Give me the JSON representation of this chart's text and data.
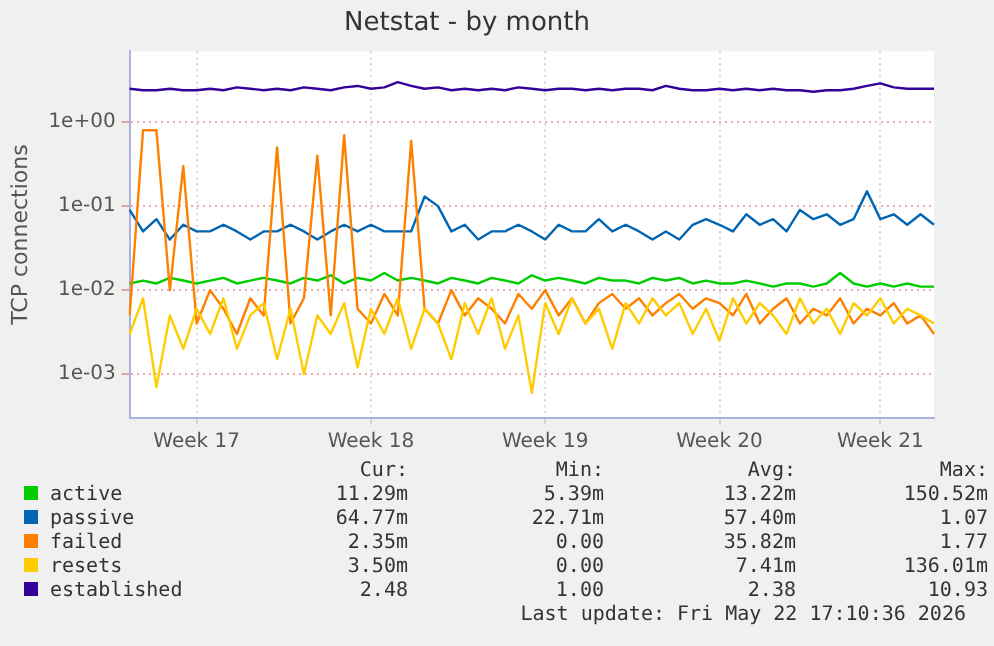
{
  "chart_data": {
    "type": "line",
    "title": "Netstat - by month",
    "ylabel": "TCP connections",
    "log": true,
    "grid": true,
    "legend": "bottom",
    "marker": "none",
    "line_style": "solid",
    "categories": [
      null,
      null,
      null,
      null,
      null,
      "Week 17",
      null,
      null,
      null,
      null,
      null,
      null,
      null,
      null,
      null,
      null,
      null,
      null,
      "Week 18",
      null,
      null,
      null,
      null,
      null,
      null,
      null,
      null,
      null,
      null,
      null,
      null,
      "Week 19",
      null,
      null,
      null,
      null,
      null,
      null,
      null,
      null,
      null,
      null,
      null,
      null,
      "Week 20",
      null,
      null,
      null,
      null,
      null,
      null,
      null,
      null,
      null,
      null,
      null,
      "Week 21",
      null,
      null,
      null,
      null
    ],
    "ylim": [
      0.0003,
      7
    ],
    "yticks": [
      {
        "value": 0.001,
        "label": "1e-03"
      },
      {
        "value": 0.01,
        "label": "1e-02"
      },
      {
        "value": 0.1,
        "label": "1e-01"
      },
      {
        "value": 1,
        "label": "1e+00"
      }
    ],
    "series": [
      {
        "name": "active",
        "color": "#00cc00",
        "values": [
          0.012,
          0.013,
          0.012,
          0.014,
          0.013,
          0.012,
          0.013,
          0.014,
          0.012,
          0.013,
          0.014,
          0.013,
          0.012,
          0.014,
          0.013,
          0.015,
          0.012,
          0.014,
          0.013,
          0.016,
          0.013,
          0.014,
          0.013,
          0.012,
          0.014,
          0.013,
          0.012,
          0.014,
          0.013,
          0.012,
          0.015,
          0.013,
          0.014,
          0.013,
          0.012,
          0.014,
          0.013,
          0.013,
          0.012,
          0.014,
          0.013,
          0.014,
          0.012,
          0.013,
          0.012,
          0.012,
          0.013,
          0.012,
          0.011,
          0.012,
          0.012,
          0.011,
          0.012,
          0.016,
          0.012,
          0.011,
          0.012,
          0.011,
          0.012,
          0.011,
          0.011
        ]
      },
      {
        "name": "passive",
        "color": "#0066b3",
        "values": [
          0.09,
          0.05,
          0.07,
          0.04,
          0.06,
          0.05,
          0.05,
          0.06,
          0.05,
          0.04,
          0.05,
          0.05,
          0.06,
          0.05,
          0.04,
          0.05,
          0.06,
          0.05,
          0.06,
          0.05,
          0.05,
          0.05,
          0.13,
          0.1,
          0.05,
          0.06,
          0.04,
          0.05,
          0.05,
          0.06,
          0.05,
          0.04,
          0.06,
          0.05,
          0.05,
          0.07,
          0.05,
          0.06,
          0.05,
          0.04,
          0.05,
          0.04,
          0.06,
          0.07,
          0.06,
          0.05,
          0.08,
          0.06,
          0.07,
          0.05,
          0.09,
          0.07,
          0.08,
          0.06,
          0.07,
          0.15,
          0.07,
          0.08,
          0.06,
          0.08,
          0.06
        ]
      },
      {
        "name": "failed",
        "color": "#ff8000",
        "values": [
          0.005,
          0.8,
          0.8,
          0.01,
          0.3,
          0.004,
          0.01,
          0.006,
          0.003,
          0.008,
          0.005,
          0.5,
          0.004,
          0.008,
          0.4,
          0.005,
          0.7,
          0.006,
          0.004,
          0.009,
          0.005,
          0.6,
          0.006,
          0.004,
          0.01,
          0.005,
          0.008,
          0.006,
          0.004,
          0.009,
          0.006,
          0.01,
          0.005,
          0.008,
          0.004,
          0.007,
          0.009,
          0.006,
          0.008,
          0.005,
          0.007,
          0.009,
          0.006,
          0.008,
          0.007,
          0.005,
          0.009,
          0.004,
          0.006,
          0.008,
          0.004,
          0.006,
          0.005,
          0.008,
          0.004,
          0.006,
          0.005,
          0.007,
          0.004,
          0.005,
          0.003
        ]
      },
      {
        "name": "resets",
        "color": "#ffcc00",
        "values": [
          0.003,
          0.008,
          0.0007,
          0.005,
          0.002,
          0.006,
          0.003,
          0.008,
          0.002,
          0.005,
          0.007,
          0.0015,
          0.006,
          0.001,
          0.005,
          0.003,
          0.007,
          0.0012,
          0.006,
          0.003,
          0.008,
          0.002,
          0.006,
          0.004,
          0.0015,
          0.007,
          0.003,
          0.008,
          0.002,
          0.005,
          0.0006,
          0.007,
          0.003,
          0.008,
          0.004,
          0.006,
          0.002,
          0.007,
          0.004,
          0.008,
          0.005,
          0.007,
          0.003,
          0.006,
          0.0025,
          0.008,
          0.004,
          0.007,
          0.005,
          0.003,
          0.008,
          0.004,
          0.006,
          0.003,
          0.007,
          0.005,
          0.008,
          0.004,
          0.006,
          0.005,
          0.004
        ]
      },
      {
        "name": "established",
        "color": "#330099",
        "values": [
          2.5,
          2.4,
          2.4,
          2.5,
          2.4,
          2.4,
          2.5,
          2.4,
          2.6,
          2.5,
          2.4,
          2.5,
          2.4,
          2.6,
          2.5,
          2.4,
          2.6,
          2.7,
          2.5,
          2.6,
          3.0,
          2.7,
          2.5,
          2.6,
          2.4,
          2.5,
          2.4,
          2.5,
          2.4,
          2.6,
          2.5,
          2.4,
          2.5,
          2.5,
          2.4,
          2.5,
          2.4,
          2.5,
          2.5,
          2.4,
          2.7,
          2.5,
          2.4,
          2.4,
          2.5,
          2.4,
          2.5,
          2.4,
          2.5,
          2.4,
          2.4,
          2.3,
          2.4,
          2.4,
          2.5,
          2.7,
          2.9,
          2.6,
          2.5,
          2.5,
          2.5
        ]
      }
    ],
    "annotations": [
      "Cur:",
      "Min:",
      "Avg:",
      "Max:",
      "11.29m",
      "5.39m",
      "13.22m",
      "150.52m",
      "64.77m",
      "22.71m",
      "57.40m",
      "1.07",
      "2.35m",
      "0.00",
      "35.82m",
      "1.77",
      "3.50m",
      "0.00",
      "7.41m",
      "136.01m",
      "2.48",
      "1.00",
      "2.38",
      "10.93",
      "Last update: Fri May 22 17:10:36 2026"
    ]
  }
}
